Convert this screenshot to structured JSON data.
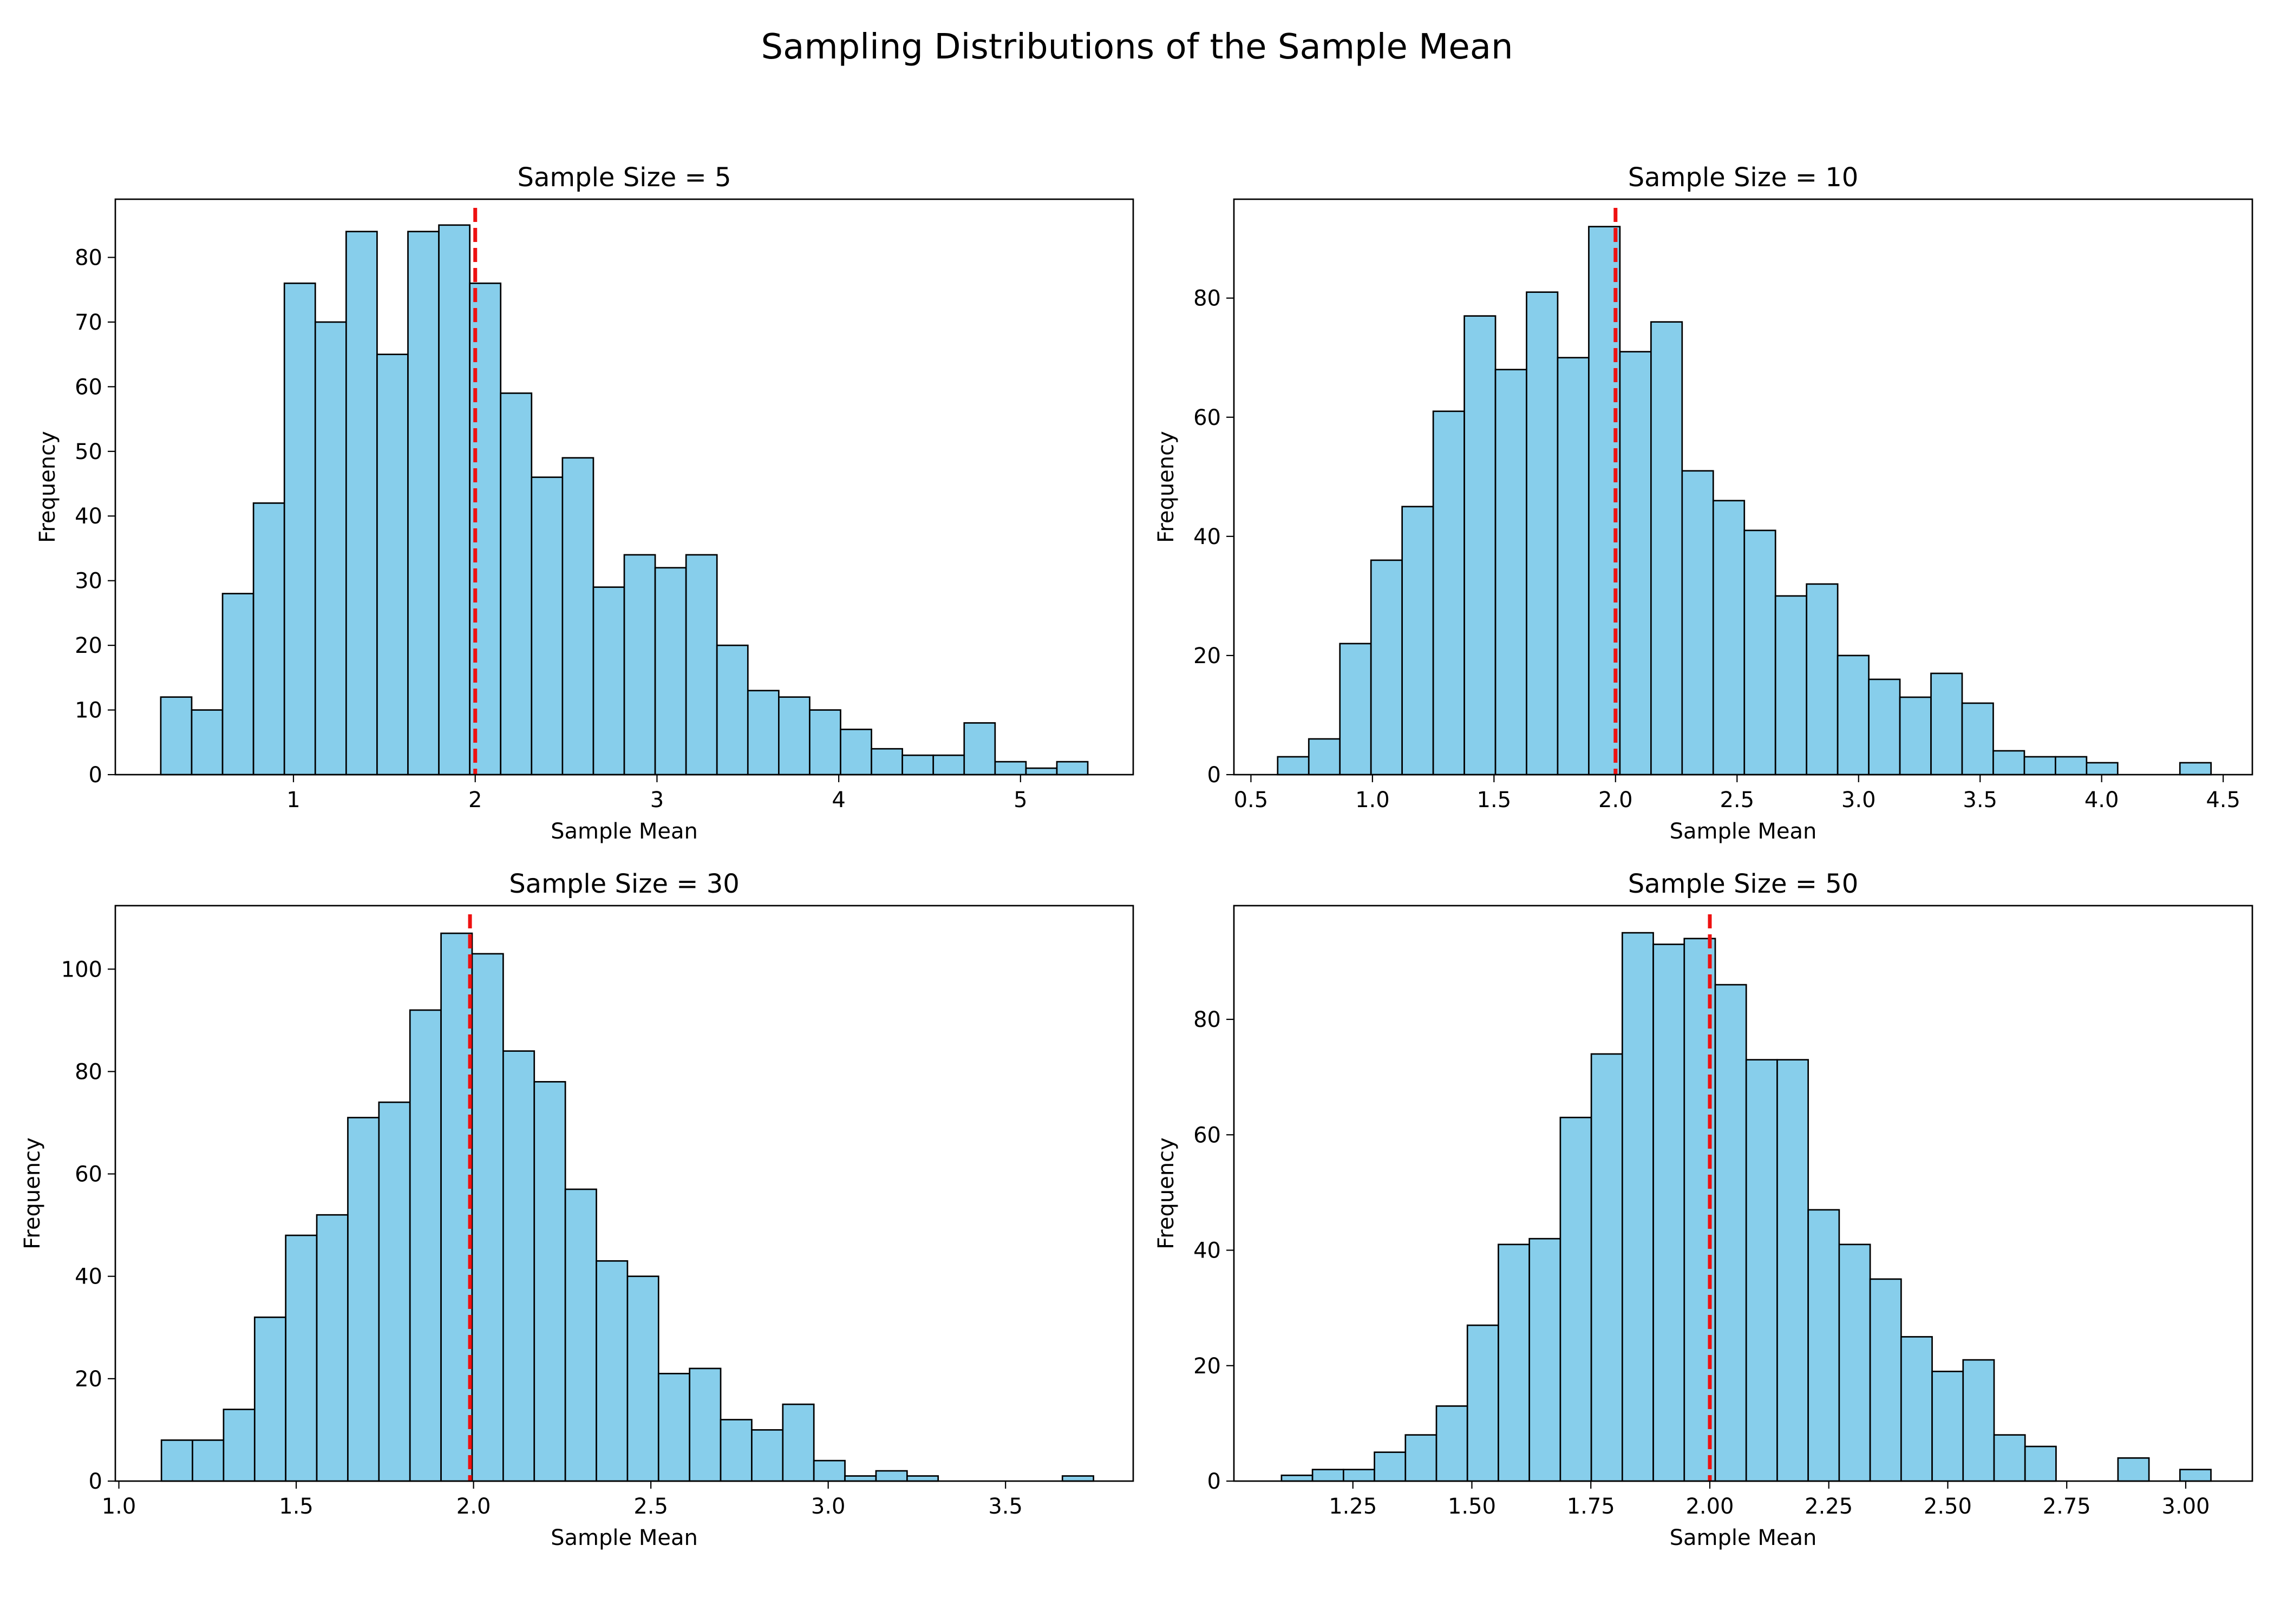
{
  "figure": {
    "title": "Sampling Distributions of the Sample Mean"
  },
  "colors": {
    "bar_fill": "#87ceeb",
    "bar_edge": "#000000",
    "mean_line": "#ee1111"
  },
  "chart_data": [
    {
      "type": "bar",
      "title": "Sample Size = 5",
      "xlabel": "Sample Mean",
      "ylabel": "Frequency",
      "grid": false,
      "bin_start": 0.27,
      "bin_width": 0.17,
      "values": [
        12,
        10,
        28,
        42,
        76,
        70,
        84,
        65,
        84,
        85,
        76,
        59,
        46,
        49,
        29,
        34,
        32,
        34,
        20,
        13,
        12,
        10,
        7,
        4,
        3,
        3,
        8,
        2,
        1,
        2
      ],
      "mean_line": 2.0,
      "xlim": [
        0.02,
        5.62
      ],
      "ylim": [
        0,
        89
      ],
      "xticks": [
        1,
        2,
        3,
        4,
        5
      ],
      "xtick_labels": [
        "1",
        "2",
        "3",
        "4",
        "5"
      ],
      "yticks": [
        0,
        10,
        20,
        30,
        40,
        50,
        60,
        70,
        80
      ],
      "ytick_labels": [
        "0",
        "10",
        "20",
        "30",
        "40",
        "50",
        "60",
        "70",
        "80"
      ]
    },
    {
      "type": "bar",
      "title": "Sample Size = 10",
      "xlabel": "Sample Mean",
      "ylabel": "Frequency",
      "grid": false,
      "bin_start": 0.61,
      "bin_width": 0.128,
      "values": [
        3,
        6,
        22,
        36,
        45,
        61,
        77,
        68,
        81,
        70,
        92,
        71,
        76,
        51,
        46,
        41,
        30,
        32,
        20,
        16,
        13,
        17,
        12,
        4,
        3,
        3,
        2,
        0,
        0,
        2
      ],
      "mean_line": 2.0,
      "xlim": [
        0.43,
        4.62
      ],
      "ylim": [
        0,
        96.6
      ],
      "xticks": [
        0.5,
        1.0,
        1.5,
        2.0,
        2.5,
        3.0,
        3.5,
        4.0,
        4.5
      ],
      "xtick_labels": [
        "0.5",
        "1.0",
        "1.5",
        "2.0",
        "2.5",
        "3.0",
        "3.5",
        "4.0",
        "4.5"
      ],
      "yticks": [
        0,
        20,
        40,
        60,
        80
      ],
      "ytick_labels": [
        "0",
        "20",
        "40",
        "60",
        "80"
      ]
    },
    {
      "type": "bar",
      "title": "Sample Size = 30",
      "xlabel": "Sample Mean",
      "ylabel": "Frequency",
      "grid": false,
      "bin_start": 1.12,
      "bin_width": 0.0876,
      "values": [
        8,
        8,
        14,
        32,
        48,
        52,
        71,
        74,
        92,
        107,
        103,
        84,
        78,
        57,
        43,
        40,
        21,
        22,
        12,
        10,
        15,
        4,
        1,
        2,
        1,
        0,
        0,
        0,
        0,
        1
      ],
      "mean_line": 1.99,
      "xlim": [
        0.99,
        3.86
      ],
      "ylim": [
        0,
        112.4
      ],
      "xticks": [
        1.0,
        1.5,
        2.0,
        2.5,
        3.0,
        3.5
      ],
      "xtick_labels": [
        "1.0",
        "1.5",
        "2.0",
        "2.5",
        "3.0",
        "3.5"
      ],
      "yticks": [
        0,
        20,
        40,
        60,
        80,
        100
      ],
      "ytick_labels": [
        "0",
        "20",
        "40",
        "60",
        "80",
        "100"
      ]
    },
    {
      "type": "bar",
      "title": "Sample Size = 50",
      "xlabel": "Sample Mean",
      "ylabel": "Frequency",
      "grid": false,
      "bin_start": 1.1,
      "bin_width": 0.0651,
      "values": [
        1,
        2,
        2,
        5,
        8,
        13,
        27,
        41,
        42,
        63,
        74,
        95,
        93,
        94,
        86,
        73,
        73,
        47,
        41,
        35,
        25,
        19,
        21,
        8,
        6,
        0,
        0,
        4,
        0,
        2
      ],
      "mean_line": 2.0,
      "xlim": [
        1.0,
        3.14
      ],
      "ylim": [
        0,
        99.7
      ],
      "xticks": [
        1.25,
        1.5,
        1.75,
        2.0,
        2.25,
        2.5,
        2.75,
        3.0
      ],
      "xtick_labels": [
        "1.25",
        "1.50",
        "1.75",
        "2.00",
        "2.25",
        "2.50",
        "2.75",
        "3.00"
      ],
      "yticks": [
        0,
        20,
        40,
        60,
        80
      ],
      "ytick_labels": [
        "0",
        "20",
        "40",
        "60",
        "80"
      ]
    }
  ]
}
